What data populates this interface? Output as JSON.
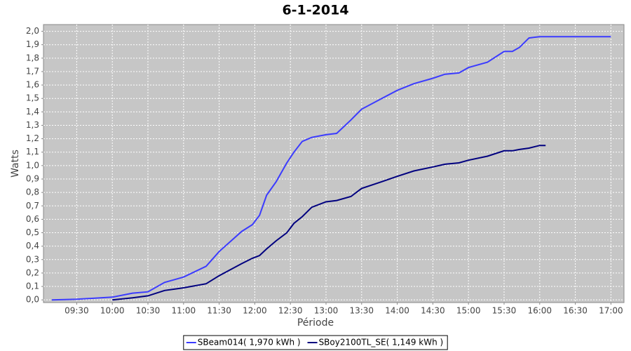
{
  "chart_data": {
    "type": "line",
    "title": "6-1-2014",
    "x_label": "Période",
    "y_label": "Watts",
    "x": [
      "09:09",
      "09:30",
      "10:00",
      "10:17",
      "10:30",
      "10:44",
      "11:00",
      "11:19",
      "11:30",
      "11:49",
      "11:58",
      "12:04",
      "12:10",
      "12:18",
      "12:27",
      "12:33",
      "12:40",
      "12:48",
      "13:00",
      "13:09",
      "13:21",
      "13:30",
      "13:47",
      "14:00",
      "14:14",
      "14:30",
      "14:40",
      "14:52",
      "15:00",
      "15:16",
      "15:30",
      "15:37",
      "15:43",
      "15:51",
      "16:00",
      "16:05",
      "17:00"
    ],
    "series": [
      {
        "name": "SBeam014( 1,970 kWh )",
        "color": "#3b3bff",
        "values": [
          0,
          0.005,
          0.02,
          0.05,
          0.06,
          0.13,
          0.17,
          0.25,
          0.36,
          0.51,
          0.56,
          0.63,
          0.78,
          0.88,
          1.02,
          1.1,
          1.18,
          1.21,
          1.23,
          1.24,
          1.34,
          1.42,
          1.5,
          1.56,
          1.61,
          1.65,
          1.68,
          1.69,
          1.73,
          1.77,
          1.85,
          1.85,
          1.88,
          1.95,
          1.96,
          1.96,
          1.96
        ]
      },
      {
        "name": "SBoy2100TL_SE( 1,149 kWh )",
        "color": "#00007f",
        "values": [
          null,
          null,
          0,
          0.015,
          0.03,
          0.07,
          0.09,
          0.12,
          0.18,
          0.27,
          0.31,
          0.33,
          0.38,
          0.44,
          0.5,
          0.57,
          0.62,
          0.69,
          0.73,
          0.74,
          0.77,
          0.83,
          0.88,
          0.92,
          0.96,
          0.99,
          1.01,
          1.02,
          1.04,
          1.07,
          1.11,
          1.11,
          1.12,
          1.13,
          1.15,
          1.15,
          null
        ]
      }
    ],
    "xlim": [
      "09:02",
      "17:11"
    ],
    "xticks": [
      "09:30",
      "10:00",
      "10:30",
      "11:00",
      "11:30",
      "12:00",
      "12:30",
      "13:00",
      "13:30",
      "14:00",
      "14:30",
      "15:00",
      "15:30",
      "16:00",
      "16:30",
      "17:00"
    ],
    "ylim": [
      -0.02,
      2.05
    ],
    "yticks": [
      {
        "value": 0,
        "label": "0,0"
      },
      {
        "value": 0.1,
        "label": "0,1"
      },
      {
        "value": 0.2,
        "label": "0,2"
      },
      {
        "value": 0.3,
        "label": "0,3"
      },
      {
        "value": 0.4,
        "label": "0,4"
      },
      {
        "value": 0.5,
        "label": "0,5"
      },
      {
        "value": 0.6,
        "label": "0,6"
      },
      {
        "value": 0.7,
        "label": "0,7"
      },
      {
        "value": 0.8,
        "label": "0,8"
      },
      {
        "value": 0.9,
        "label": "0,9"
      },
      {
        "value": 1,
        "label": "1,0"
      },
      {
        "value": 1.1,
        "label": "1,1"
      },
      {
        "value": 1.2,
        "label": "1,2"
      },
      {
        "value": 1.3,
        "label": "1,3"
      },
      {
        "value": 1.4,
        "label": "1,4"
      },
      {
        "value": 1.5,
        "label": "1,5"
      },
      {
        "value": 1.6,
        "label": "1,6"
      },
      {
        "value": 1.7,
        "label": "1,7"
      },
      {
        "value": 1.8,
        "label": "1,8"
      },
      {
        "value": 1.9,
        "label": "1,9"
      },
      {
        "value": 2,
        "label": "2,0"
      }
    ],
    "grid": true,
    "legend": "bottom"
  }
}
